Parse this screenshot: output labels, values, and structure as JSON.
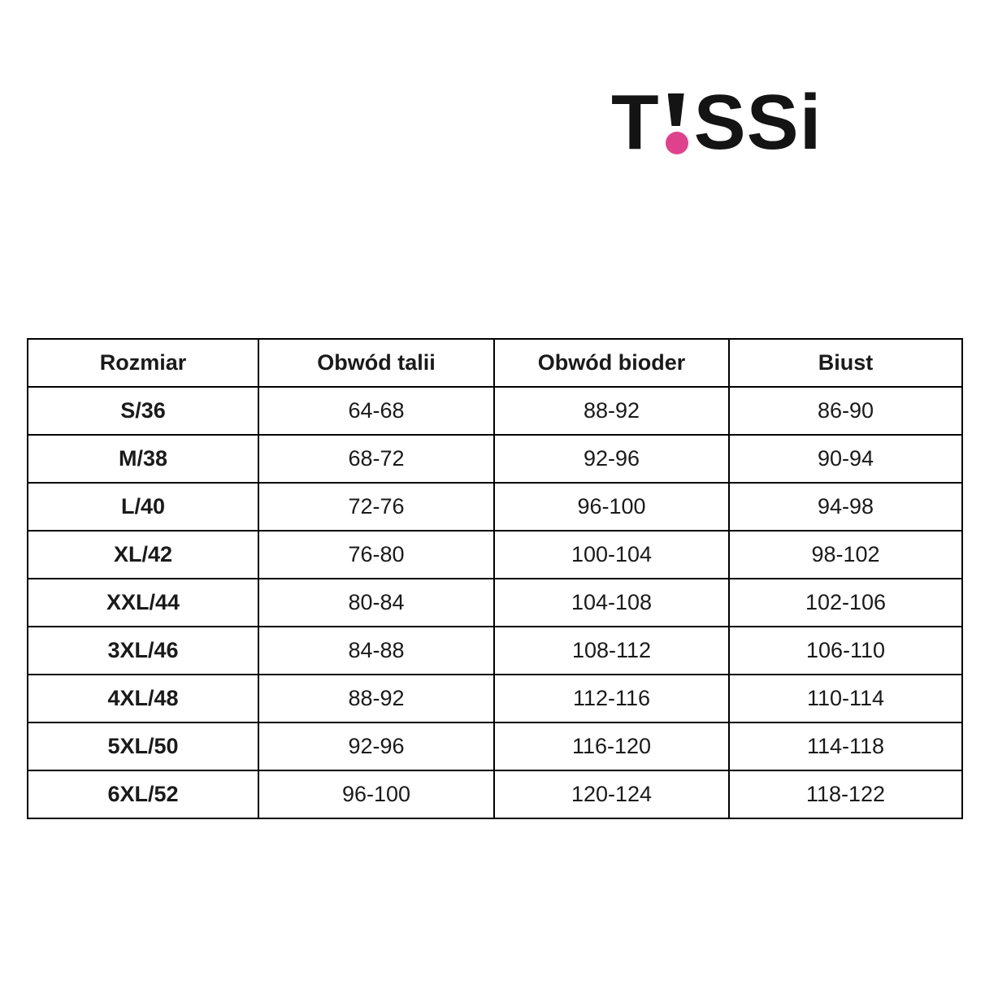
{
  "logo": {
    "full_text": "T!SSi",
    "prefix": "T",
    "suffix": "SSi",
    "text_color": "#141414",
    "dot_color": "#e0418d"
  },
  "chart_data": {
    "type": "table",
    "title": "",
    "columns": [
      "Rozmiar",
      "Obwód talii",
      "Obwód bioder",
      "Biust"
    ],
    "rows": [
      [
        "S/36",
        "64-68",
        "88-92",
        "86-90"
      ],
      [
        "M/38",
        "68-72",
        "92-96",
        "90-94"
      ],
      [
        "L/40",
        "72-76",
        "96-100",
        "94-98"
      ],
      [
        "XL/42",
        "76-80",
        "100-104",
        "98-102"
      ],
      [
        "XXL/44",
        "80-84",
        "104-108",
        "102-106"
      ],
      [
        "3XL/46",
        "84-88",
        "108-112",
        "106-110"
      ],
      [
        "4XL/48",
        "88-92",
        "112-116",
        "110-114"
      ],
      [
        "5XL/50",
        "92-96",
        "116-120",
        "114-118"
      ],
      [
        "6XL/52",
        "96-100",
        "120-124",
        "118-122"
      ]
    ],
    "layout": {
      "grid": true,
      "header_bold": true,
      "first_column_bold": true,
      "border_color": "#000000"
    }
  }
}
